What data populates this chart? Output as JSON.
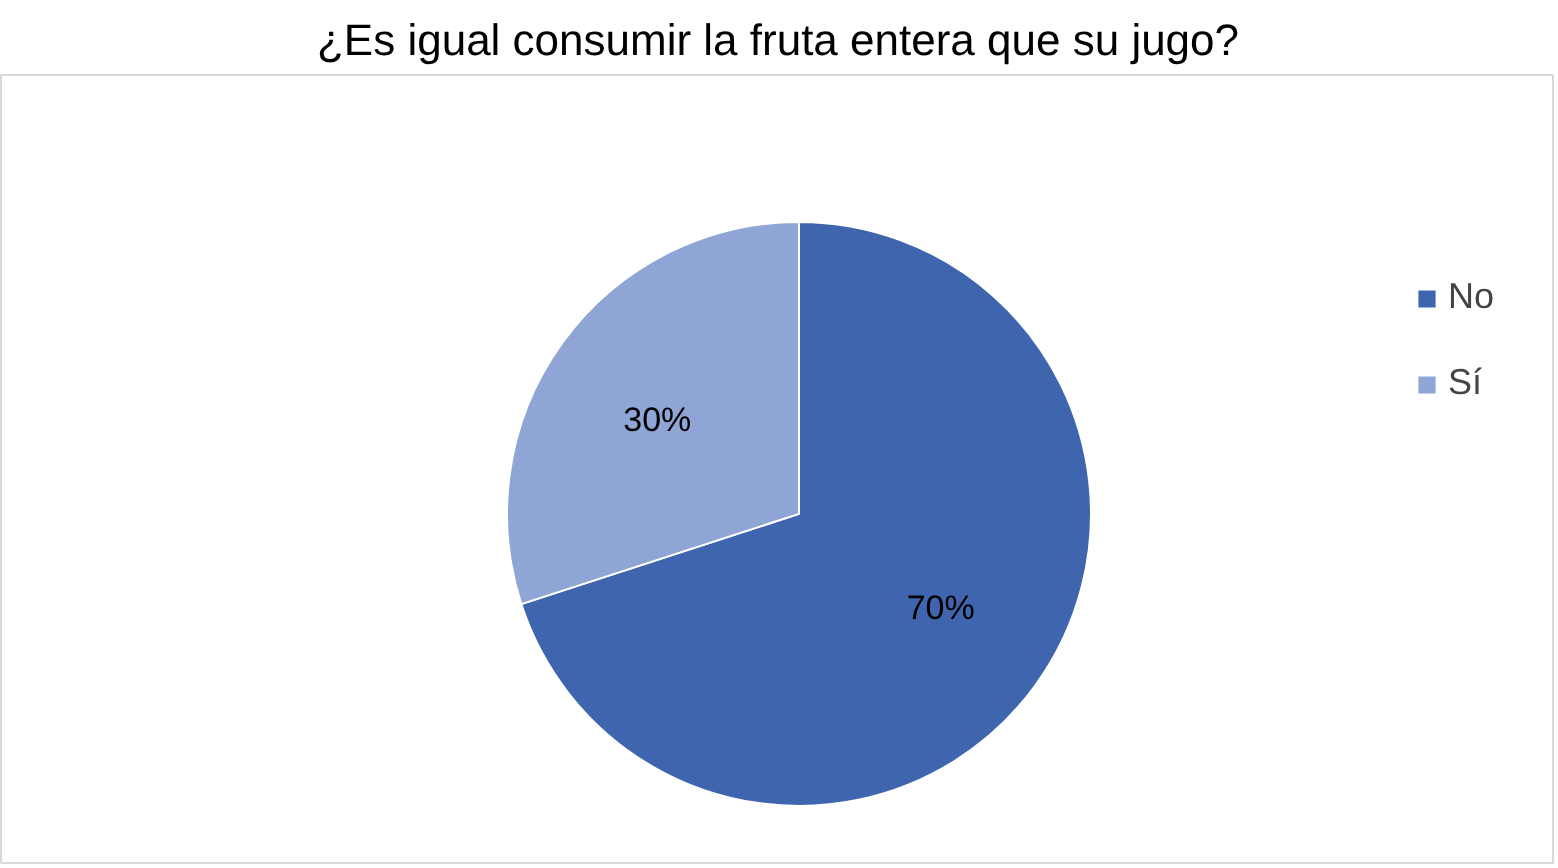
{
  "chart_data": {
    "type": "pie",
    "title": "¿Es igual consumir la fruta entera que su jugo?",
    "categories": [
      "No",
      "Sí"
    ],
    "values": [
      70,
      30
    ],
    "colors": [
      "#3f65ae",
      "#8fa5d5"
    ],
    "value_labels": [
      "70%",
      "30%"
    ],
    "legend": "right"
  }
}
